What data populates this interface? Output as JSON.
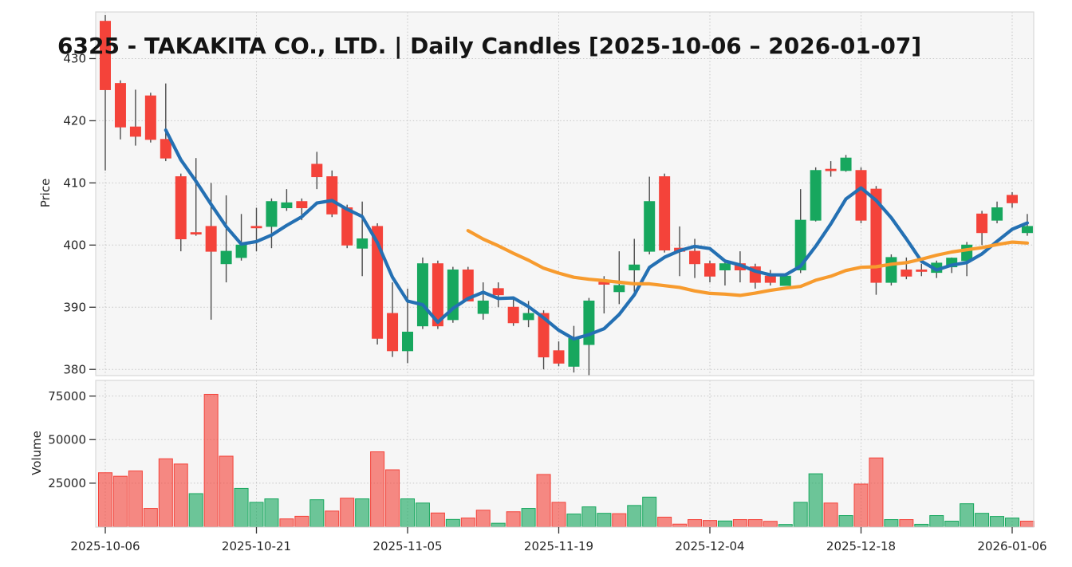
{
  "title": "6325 - TAKAKITA CO., LTD. | Daily Candles [2025-10-06 – 2026-01-07]",
  "axes": {
    "price_label": "Price",
    "volume_label": "Volume",
    "price_ticks": [
      380,
      390,
      400,
      410,
      420,
      430
    ],
    "volume_ticks": [
      25000,
      50000,
      75000
    ],
    "x_tick_indices": [
      0,
      10,
      20,
      30,
      40,
      50,
      60
    ],
    "x_tick_labels": [
      "2025-10-06",
      "2025-10-21",
      "2025-11-05",
      "2025-11-19",
      "2025-12-04",
      "2025-12-18",
      "2026-01-06"
    ]
  },
  "style": {
    "up_color": "#17a75e",
    "down_color": "#f4433a",
    "wick_color": "#4d4d4d",
    "sma_fast_color": "#2470b3",
    "sma_slow_color": "#f79b2e",
    "plot_background": "#f6f6f6",
    "figure_background": "#ffffff",
    "grid_color": "#c7c7c7",
    "spine_color": "#d9d9d9",
    "text_color": "#262626"
  },
  "chart_data": {
    "type": "candlestick",
    "title": "6325 - TAKAKITA CO., LTD. | Daily Candles [2025-10-06 – 2026-01-07]",
    "ylabel_price": "Price",
    "ylabel_volume": "Volume",
    "ylim_price": [
      379,
      437.5
    ],
    "ylim_volume": [
      0,
      84000
    ],
    "grid": "dotted",
    "sma_overlays": [
      {
        "name": "SMA-5",
        "period": 5,
        "color": "#2470b3"
      },
      {
        "name": "SMA-25",
        "period": 25,
        "color": "#f79b2e"
      }
    ],
    "dates": [
      "2025-10-06",
      "2025-10-07",
      "2025-10-08",
      "2025-10-09",
      "2025-10-10",
      "2025-10-14",
      "2025-10-15",
      "2025-10-16",
      "2025-10-17",
      "2025-10-20",
      "2025-10-21",
      "2025-10-22",
      "2025-10-23",
      "2025-10-24",
      "2025-10-27",
      "2025-10-28",
      "2025-10-29",
      "2025-10-30",
      "2025-10-31",
      "2025-11-04",
      "2025-11-05",
      "2025-11-06",
      "2025-11-07",
      "2025-11-10",
      "2025-11-11",
      "2025-11-12",
      "2025-11-13",
      "2025-11-14",
      "2025-11-17",
      "2025-11-18",
      "2025-11-19",
      "2025-11-20",
      "2025-11-21",
      "2025-11-25",
      "2025-11-26",
      "2025-11-27",
      "2025-11-28",
      "2025-12-01",
      "2025-12-02",
      "2025-12-03",
      "2025-12-04",
      "2025-12-05",
      "2025-12-08",
      "2025-12-09",
      "2025-12-10",
      "2025-12-11",
      "2025-12-12",
      "2025-12-15",
      "2025-12-16",
      "2025-12-17",
      "2025-12-18",
      "2025-12-19",
      "2025-12-22",
      "2025-12-23",
      "2025-12-24",
      "2025-12-25",
      "2025-12-26",
      "2025-12-29",
      "2025-12-30",
      "2026-01-05",
      "2026-01-06",
      "2026-01-07"
    ],
    "open": [
      436,
      426,
      419,
      424,
      417,
      411,
      402,
      403,
      397,
      398,
      403,
      403,
      406,
      407,
      413,
      411,
      406,
      399.5,
      403,
      389,
      383,
      387,
      397,
      388,
      396,
      389,
      393,
      390,
      388,
      389,
      383,
      380.5,
      384,
      394,
      392.5,
      396,
      399,
      411,
      399.5,
      399,
      397,
      396,
      397,
      396.5,
      395,
      393.5,
      396,
      404,
      412.2,
      412,
      412,
      409,
      394,
      396,
      396,
      395.6,
      396.5,
      397.5,
      405,
      404,
      408,
      402
    ],
    "high": [
      437,
      426.5,
      425,
      424.5,
      426,
      411.5,
      414,
      410,
      408,
      405,
      406,
      407.5,
      409,
      407.5,
      415,
      412,
      406.5,
      407,
      403.5,
      394,
      393,
      398,
      397.5,
      396.5,
      396.5,
      394,
      394,
      391.5,
      391,
      389.5,
      384.5,
      387,
      391.5,
      395,
      399,
      401,
      411,
      411.5,
      403,
      401,
      397.5,
      397.5,
      399,
      397,
      396,
      395.5,
      409,
      412.5,
      413.5,
      414.5,
      412.5,
      409.5,
      398.5,
      398,
      397,
      397.5,
      398,
      400.5,
      405.5,
      407,
      408.5,
      405
    ],
    "low": [
      412,
      417,
      416,
      416.5,
      413.5,
      399,
      401.5,
      388,
      394,
      397.5,
      399,
      399.5,
      405.5,
      404,
      409,
      404.5,
      399.5,
      395,
      384,
      382,
      381,
      386.5,
      386.5,
      387.5,
      391,
      388,
      390,
      387,
      386.8,
      380,
      380.5,
      379.5,
      379,
      389,
      390.5,
      392.5,
      398.5,
      398.8,
      395,
      394.7,
      394,
      393.5,
      394,
      393,
      393.5,
      393.5,
      395.5,
      403.8,
      411,
      411.8,
      403.5,
      392,
      393.5,
      394.5,
      395,
      394.7,
      395.5,
      395,
      400,
      403.5,
      406,
      401.5
    ],
    "close": [
      425,
      419,
      417.5,
      417,
      414,
      401,
      401.8,
      399,
      399,
      400,
      403,
      407,
      406.8,
      406,
      411,
      405,
      400,
      401,
      385,
      383,
      386,
      397,
      387,
      396,
      391,
      391,
      392,
      387.5,
      389,
      382,
      381,
      385,
      391,
      393.7,
      393.5,
      396.8,
      407,
      399.2,
      399,
      397,
      395,
      397,
      396,
      394,
      394,
      395,
      404,
      412,
      412,
      414,
      404,
      394,
      398,
      395,
      395.9,
      397.1,
      397.9,
      400,
      402,
      406,
      406.8,
      403
    ],
    "volume": [
      31000,
      29000,
      32000,
      10500,
      39000,
      36000,
      19000,
      76000,
      40500,
      22000,
      14000,
      16000,
      4500,
      6000,
      15500,
      9000,
      16400,
      16000,
      43000,
      32700,
      16000,
      13600,
      7900,
      4200,
      5000,
      9500,
      2000,
      8600,
      10500,
      30000,
      14000,
      7300,
      11400,
      7700,
      7500,
      12200,
      17000,
      5500,
      1500,
      4100,
      3600,
      3300,
      4100,
      4100,
      3100,
      1300,
      14000,
      30400,
      13600,
      6400,
      24500,
      39500,
      4100,
      4100,
      1400,
      6400,
      3200,
      13200,
      7700,
      5900,
      5000,
      3200
    ]
  }
}
